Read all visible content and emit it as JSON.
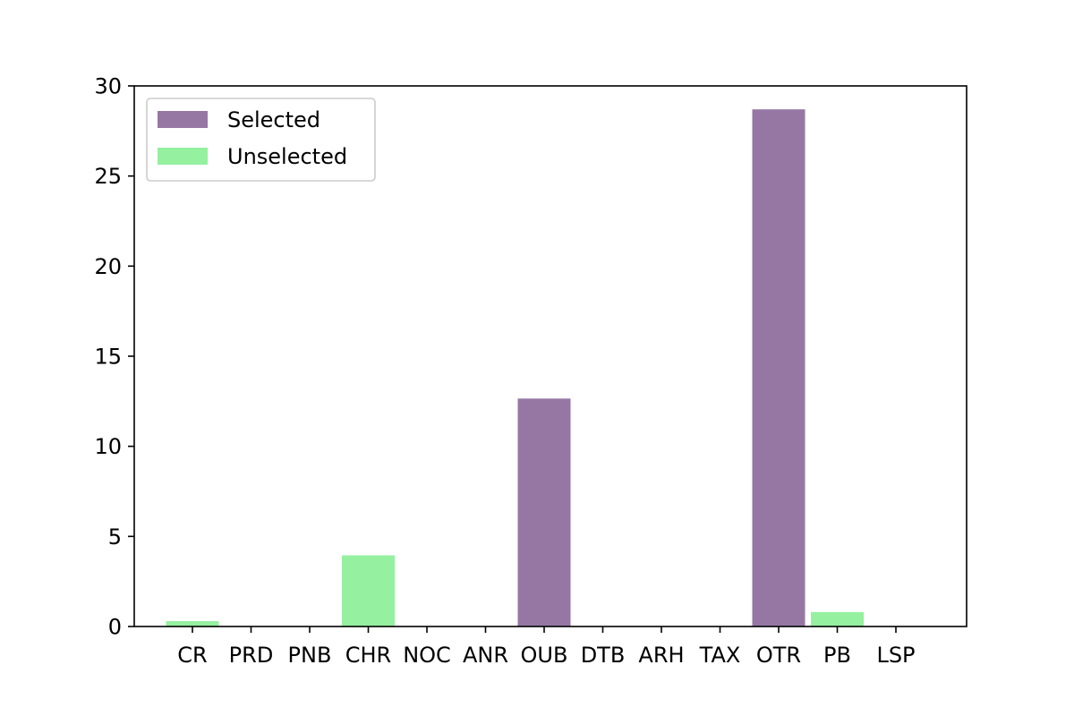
{
  "chart_data": {
    "type": "bar",
    "categories": [
      "CR",
      "PRD",
      "PNB",
      "CHR",
      "NOC",
      "ANR",
      "OUB",
      "DTB",
      "ARH",
      "TAX",
      "OTR",
      "PB",
      "LSP"
    ],
    "series": [
      {
        "name": "Selected",
        "color": "#9677a4",
        "values": [
          0,
          0,
          0,
          0,
          0,
          0,
          12.65,
          0,
          0,
          0,
          28.7,
          0,
          0
        ]
      },
      {
        "name": "Unselected",
        "color": "#95f0a0",
        "values": [
          0.3,
          0,
          0,
          3.95,
          0,
          0,
          0,
          0,
          0,
          0,
          0,
          0.8,
          0
        ]
      }
    ],
    "ylim": [
      0,
      30
    ],
    "yticks": [
      0,
      5,
      10,
      15,
      20,
      25,
      30
    ],
    "title": "",
    "xlabel": "",
    "ylabel": "",
    "legend_position": "top-left",
    "grid": false
  }
}
